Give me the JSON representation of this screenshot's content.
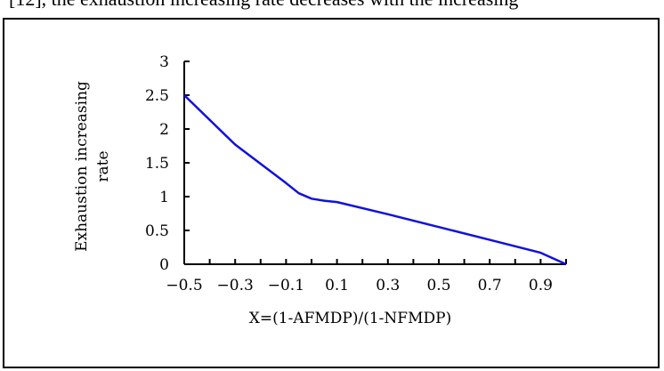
{
  "page": {
    "clipped_top_text": "[12], the exhaustion increasing rate decreases with the increasing"
  },
  "chart_data": {
    "type": "line",
    "title": "",
    "xlabel": "X=(1-AFMDP)/(1-NFMDP)",
    "ylabel_lines": [
      "Exhaustion increasing",
      "rate"
    ],
    "xlim": [
      -0.5,
      1.0
    ],
    "ylim": [
      0,
      3
    ],
    "xticks": [
      -0.5,
      -0.4,
      -0.3,
      -0.2,
      -0.1,
      0.0,
      0.1,
      0.2,
      0.3,
      0.4,
      0.5,
      0.6,
      0.7,
      0.8,
      0.9,
      1.0
    ],
    "xtick_labels": [
      {
        "value": -0.5,
        "text": "−0.5"
      },
      {
        "value": -0.3,
        "text": "−0.3"
      },
      {
        "value": -0.1,
        "text": "−0.1"
      },
      {
        "value": 0.1,
        "text": "0.1"
      },
      {
        "value": 0.3,
        "text": "0.3"
      },
      {
        "value": 0.5,
        "text": "0.5"
      },
      {
        "value": 0.7,
        "text": "0.7"
      },
      {
        "value": 0.9,
        "text": "0.9"
      }
    ],
    "ytick_labels": [
      {
        "value": 0,
        "text": "0"
      },
      {
        "value": 0.5,
        "text": "0.5"
      },
      {
        "value": 1,
        "text": "1"
      },
      {
        "value": 1.5,
        "text": "1.5"
      },
      {
        "value": 2,
        "text": "2"
      },
      {
        "value": 2.5,
        "text": "2.5"
      },
      {
        "value": 3,
        "text": "3"
      }
    ],
    "grid": false,
    "series": [
      {
        "color": "#1010e0",
        "x": [
          -0.5,
          -0.3,
          -0.1,
          -0.05,
          0.0,
          0.05,
          0.1,
          0.3,
          0.5,
          0.7,
          0.9,
          1.0
        ],
        "y": [
          2.5,
          1.77,
          1.2,
          1.05,
          0.97,
          0.94,
          0.92,
          0.74,
          0.55,
          0.36,
          0.17,
          0.0
        ]
      }
    ]
  }
}
